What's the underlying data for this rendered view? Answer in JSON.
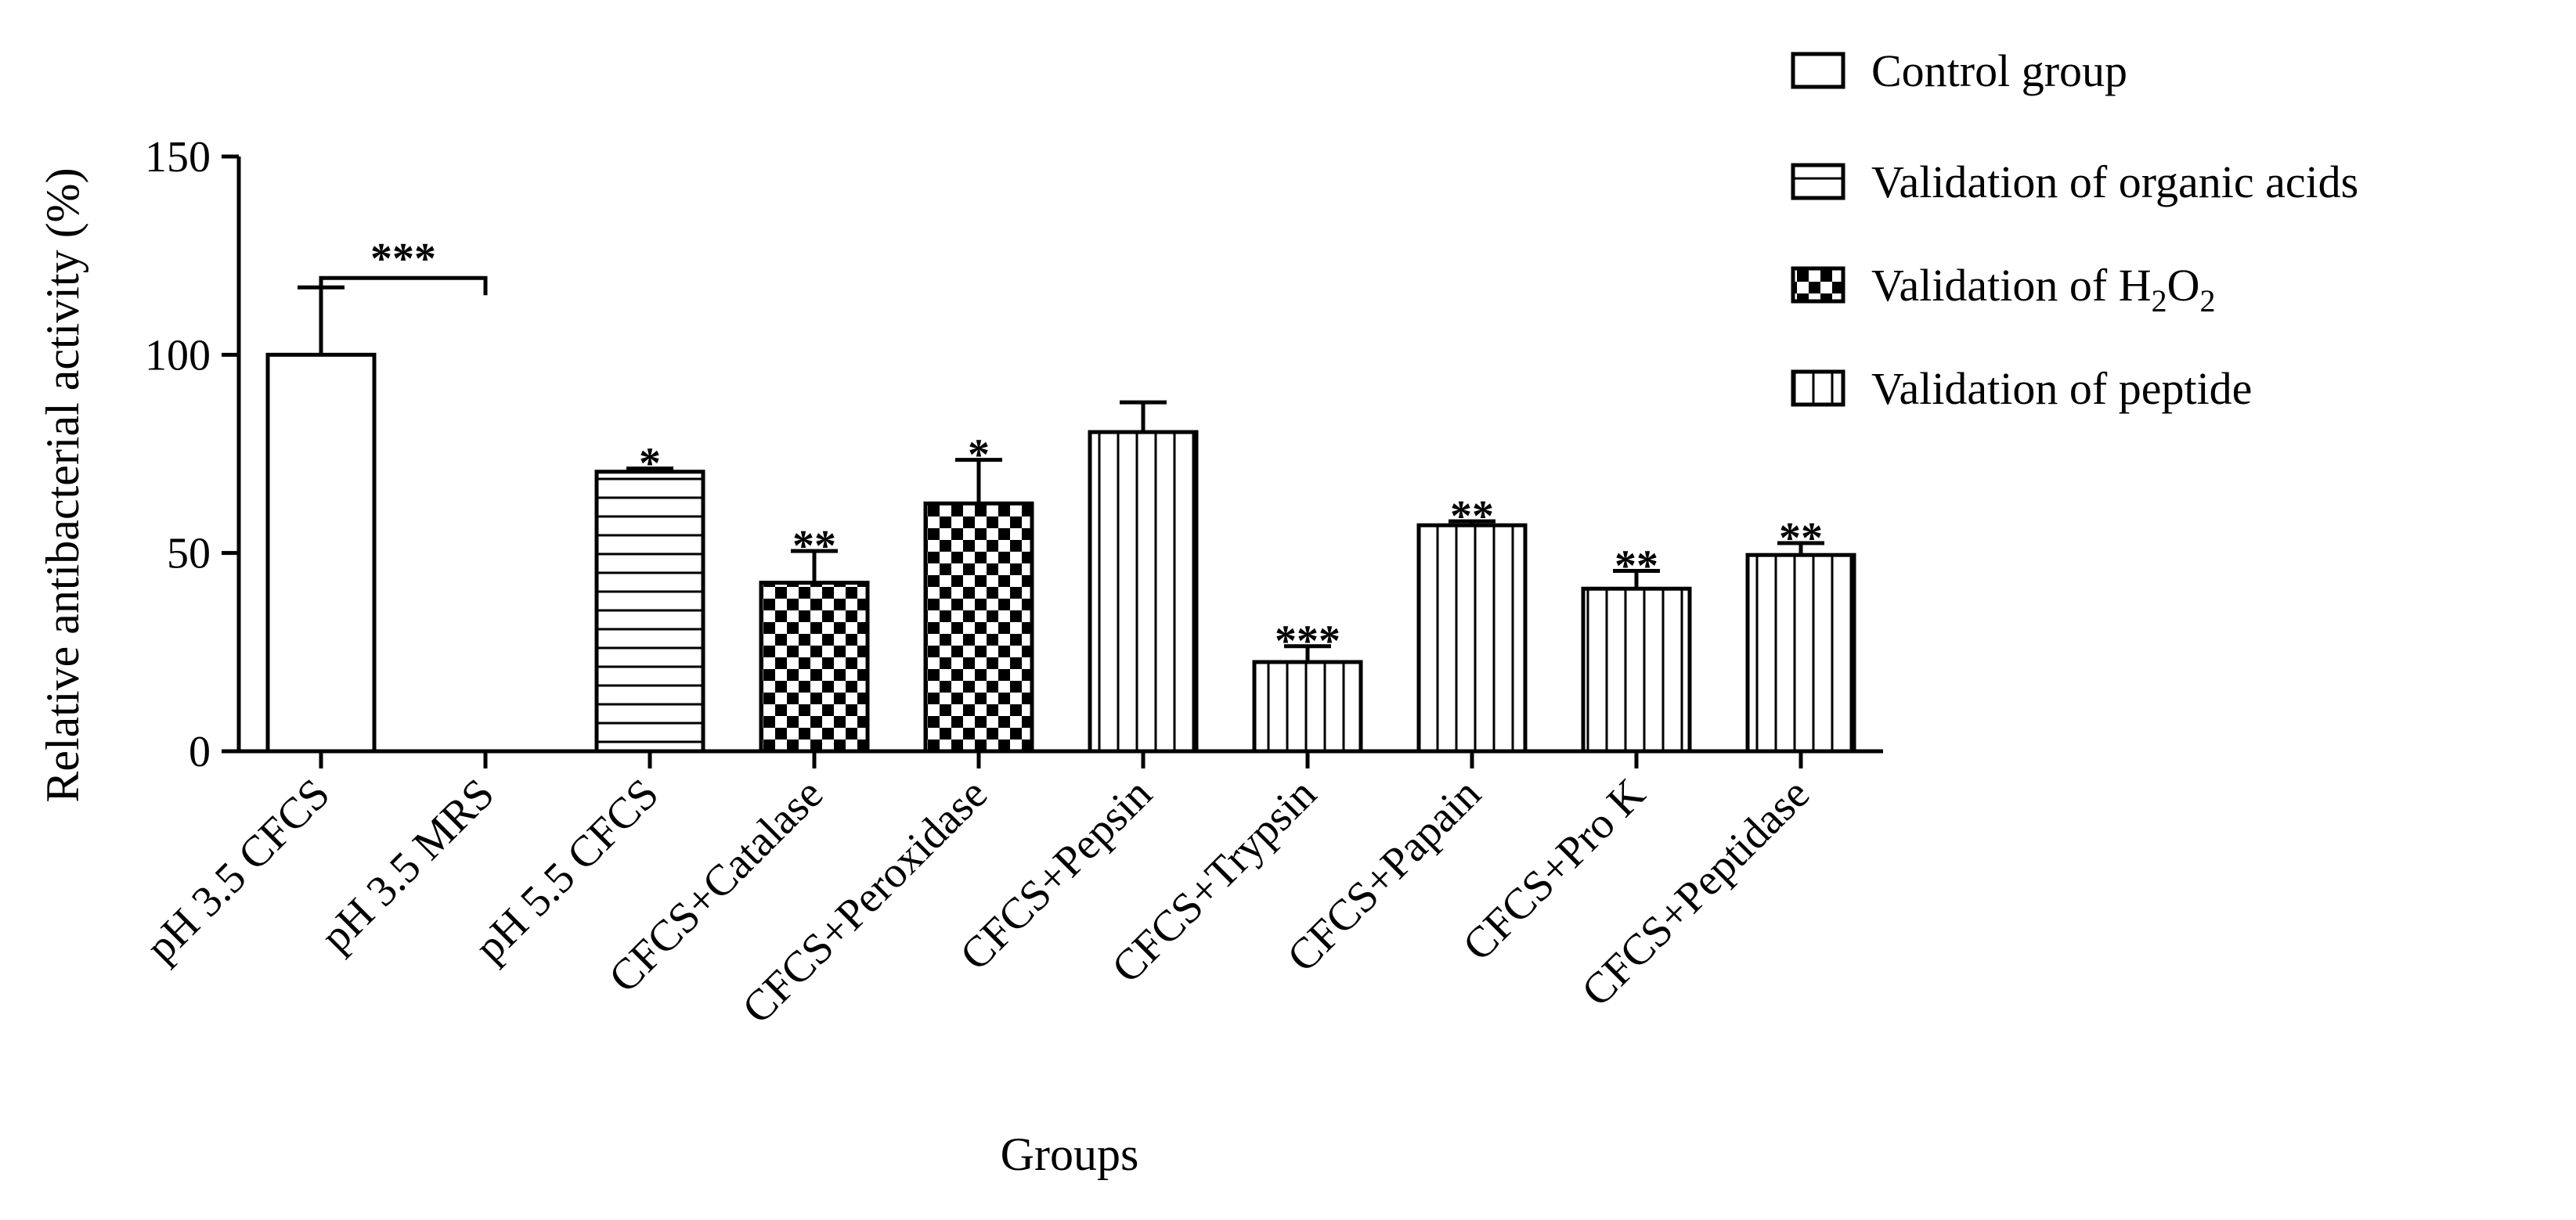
{
  "chart_data": {
    "type": "bar",
    "xlabel": "Groups",
    "ylabel": "Relative antibacterial activity (%)",
    "ylim": [
      0,
      150
    ],
    "yticks": [
      0,
      50,
      100,
      150
    ],
    "legend": {
      "placement": "top-right",
      "entries": [
        {
          "key": "control",
          "label": "Control group"
        },
        {
          "key": "organic",
          "label": "Validation of  organic acids"
        },
        {
          "key": "h2o2",
          "label_prefix": "Validation of H",
          "label_sub1": "2",
          "label_mid": "O",
          "label_sub2": "2"
        },
        {
          "key": "peptide",
          "label": "Validation of  peptide"
        }
      ]
    },
    "bars": [
      {
        "category": "pH 3.5 CFCS",
        "value": 100,
        "error": 17,
        "group": "control",
        "sig": ""
      },
      {
        "category": "pH 3.5 MRS",
        "value": 0,
        "error": 0,
        "group": "control",
        "sig": ""
      },
      {
        "category": "pH 5.5 CFCS",
        "value": 70.5,
        "error": 0.8,
        "group": "organic",
        "sig": "*"
      },
      {
        "category": "CFCS+Catalase",
        "value": 42.5,
        "error": 8,
        "group": "h2o2",
        "sig": "**"
      },
      {
        "category": "CFCS+Peroxidase",
        "value": 62.5,
        "error": 11,
        "group": "h2o2",
        "sig": "*"
      },
      {
        "category": "CFCS+Pepsin",
        "value": 80.5,
        "error": 7.5,
        "group": "peptide",
        "sig": ""
      },
      {
        "category": "CFCS+Trypsin",
        "value": 22.5,
        "error": 4,
        "group": "peptide",
        "sig": "***"
      },
      {
        "category": "CFCS+Papain",
        "value": 57,
        "error": 1,
        "group": "peptide",
        "sig": "**"
      },
      {
        "category": "CFCS+Pro K",
        "value": 41,
        "error": 4.5,
        "group": "peptide",
        "sig": "**"
      },
      {
        "category": "CFCS+Peptidase",
        "value": 49.5,
        "error": 3,
        "group": "peptide",
        "sig": "**"
      }
    ],
    "bracket": {
      "from": "pH 3.5 CFCS",
      "to": "pH 3.5 MRS",
      "label": "***"
    }
  }
}
